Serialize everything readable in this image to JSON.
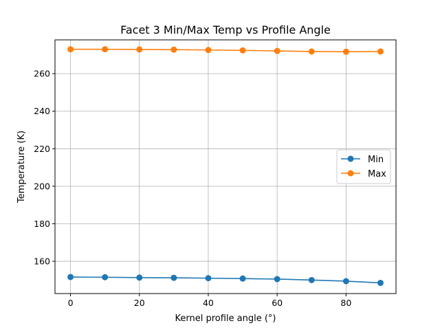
{
  "chart_data": {
    "type": "line",
    "title": "Facet 3 Min/Max Temp vs Profile Angle",
    "xlabel": "Kernel profile angle (°)",
    "ylabel": "Temperature (K)",
    "x": [
      0,
      10,
      20,
      30,
      40,
      50,
      60,
      70,
      80,
      90
    ],
    "xlim": [
      -4.5,
      94.5
    ],
    "ylim": [
      142.8,
      278.0
    ],
    "xticks": [
      0,
      20,
      40,
      60,
      80
    ],
    "yticks": [
      160,
      180,
      200,
      220,
      240,
      260
    ],
    "grid": true,
    "legend_position": "center-right",
    "series": [
      {
        "name": "Min",
        "color": "#1f77b4",
        "marker": "circle",
        "values": [
          151.6,
          151.5,
          151.3,
          151.2,
          151.0,
          150.8,
          150.5,
          150.0,
          149.4,
          148.5
        ]
      },
      {
        "name": "Max",
        "color": "#ff7f0e",
        "marker": "circle",
        "values": [
          273.0,
          273.0,
          272.9,
          272.8,
          272.6,
          272.4,
          272.1,
          271.8,
          271.7,
          271.8
        ]
      }
    ]
  }
}
